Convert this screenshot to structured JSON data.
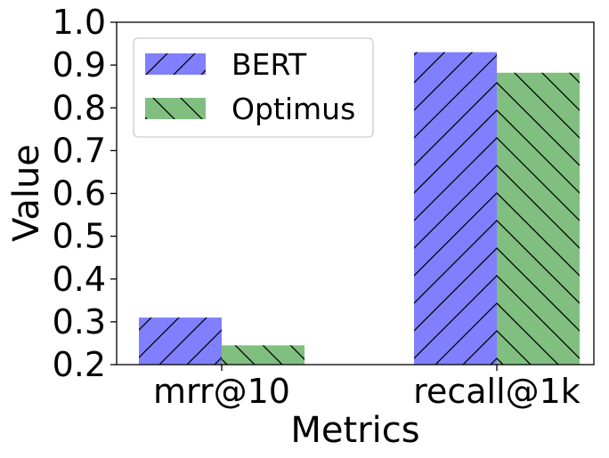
{
  "chart_data": {
    "type": "bar",
    "categories": [
      "mrr@10",
      "recall@1k"
    ],
    "series": [
      {
        "name": "BERT",
        "values": [
          0.31,
          0.93
        ],
        "color": "#8080ff",
        "hatch": "forward-diagonal"
      },
      {
        "name": "Optimus",
        "values": [
          0.245,
          0.882
        ],
        "color": "#80bf80",
        "hatch": "backward-diagonal"
      }
    ],
    "title": "",
    "xlabel": "Metrics",
    "ylabel": "Value",
    "ylim": [
      0.2,
      1.0
    ],
    "yticks": [
      "0.2",
      "0.3",
      "0.4",
      "0.5",
      "0.6",
      "0.7",
      "0.8",
      "0.9",
      "1.0"
    ],
    "grid": false,
    "legend_position": "top-left"
  }
}
